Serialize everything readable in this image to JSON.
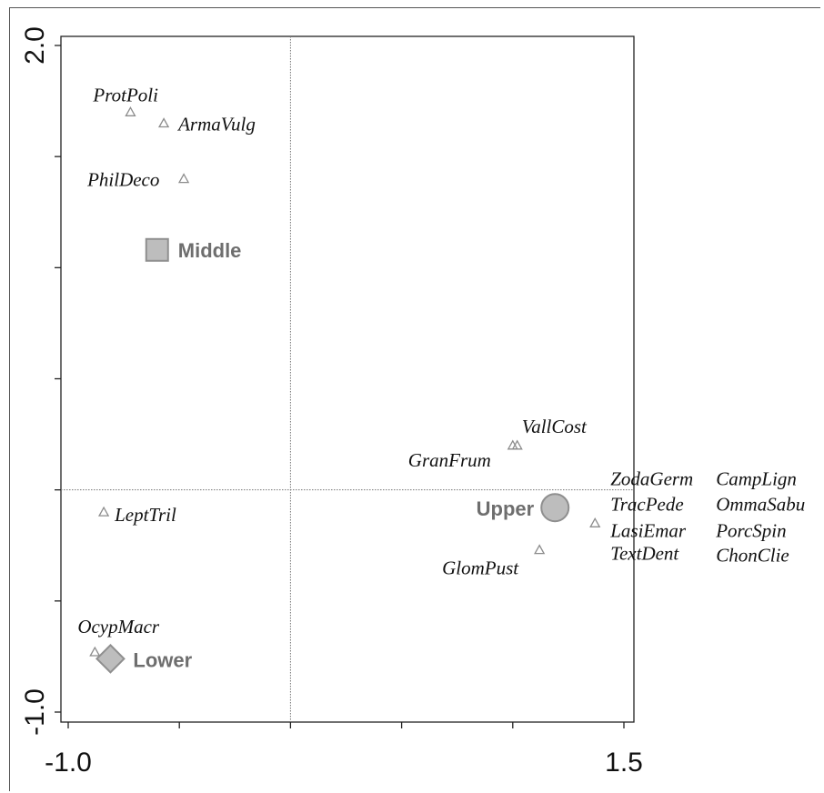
{
  "chart_data": {
    "type": "scatter",
    "title": "",
    "xlabel": "",
    "ylabel": "",
    "xlim": [
      -1.05,
      1.55
    ],
    "ylim": [
      -1.05,
      2.05
    ],
    "x_ticks": [
      -1.0,
      -0.5,
      0.0,
      0.5,
      1.0,
      1.5
    ],
    "y_ticks": [
      -1.0,
      -0.5,
      0.0,
      0.5,
      1.0,
      1.5,
      2.0
    ],
    "x_tick_labels": [
      "-1.0",
      "1.5"
    ],
    "y_tick_labels": [
      "2.0",
      "-1.0"
    ],
    "reference_lines": {
      "x": 0.0,
      "y": 0.0
    },
    "grid": false,
    "legend": "none",
    "colors": {
      "marker": "#8c8c8c",
      "group_fill": "#bdbdbd",
      "group_stroke": "#8f8f8f",
      "group_text": "#6e6e6e"
    },
    "series": [
      {
        "marker": "triangle",
        "points": [
          {
            "label": "ProtPoli",
            "x": -0.72,
            "y": 1.7
          },
          {
            "label": "ArmaVulg",
            "x": -0.57,
            "y": 1.65
          },
          {
            "label": "PhilDeco",
            "x": -0.48,
            "y": 1.4
          },
          {
            "label": "VallCost",
            "x": 1.02,
            "y": 0.2
          },
          {
            "label": "GranFrum",
            "x": 1.0,
            "y": 0.2
          },
          {
            "label": "LeptTril",
            "x": -0.84,
            "y": -0.1
          },
          {
            "label": "GlomPust",
            "x": 1.12,
            "y": -0.27
          },
          {
            "label": "OcypMacr",
            "x": -0.88,
            "y": -0.73
          },
          {
            "label": "ZodaGerm",
            "x": 1.37,
            "y": -0.15
          },
          {
            "label": "TracPede",
            "x": 1.37,
            "y": -0.15
          },
          {
            "label": "LasiEmar",
            "x": 1.37,
            "y": -0.15
          },
          {
            "label": "TextDent",
            "x": 1.37,
            "y": -0.15
          },
          {
            "label": "CampLign",
            "x": 1.37,
            "y": -0.15
          },
          {
            "label": "OmmaSabu",
            "x": 1.37,
            "y": -0.15
          },
          {
            "label": "PorcSpin",
            "x": 1.37,
            "y": -0.15
          },
          {
            "label": "ChonClie",
            "x": 1.37,
            "y": -0.15
          }
        ]
      },
      {
        "marker": "group",
        "points": [
          {
            "label": "Middle",
            "x": -0.6,
            "y": 1.08,
            "shape": "square"
          },
          {
            "label": "Upper",
            "x": 1.19,
            "y": -0.08,
            "shape": "circle"
          },
          {
            "label": "Lower",
            "x": -0.81,
            "y": -0.76,
            "shape": "diamond"
          }
        ]
      }
    ]
  }
}
